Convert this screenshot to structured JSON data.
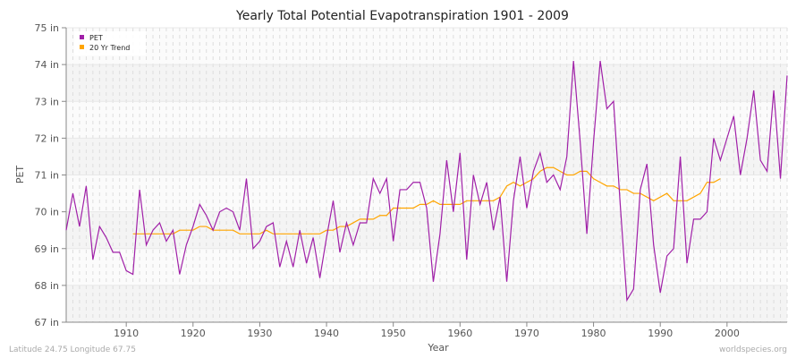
{
  "chart_data": {
    "type": "line",
    "title": "Yearly Total Potential Evapotranspiration 1901 - 2009",
    "xlabel": "Year",
    "ylabel": "PET",
    "xlim": [
      1901,
      2009
    ],
    "ylim": [
      67,
      75
    ],
    "xticks": [
      1910,
      1920,
      1930,
      1940,
      1950,
      1960,
      1970,
      1980,
      1990,
      2000
    ],
    "yticks": [
      {
        "v": 67,
        "label": "67 in"
      },
      {
        "v": 68,
        "label": "68 in"
      },
      {
        "v": 69,
        "label": "69 in"
      },
      {
        "v": 70,
        "label": "70 in"
      },
      {
        "v": 71,
        "label": "71 in"
      },
      {
        "v": 72,
        "label": "72 in"
      },
      {
        "v": 73,
        "label": "73 in"
      },
      {
        "v": 74,
        "label": "74 in"
      },
      {
        "v": 75,
        "label": "75 in"
      }
    ],
    "grid": true,
    "legend_position": "top-left",
    "series": [
      {
        "name": "PET",
        "color": "#a020a8",
        "start_year": 1901,
        "values": [
          69.5,
          70.5,
          69.6,
          70.7,
          68.7,
          69.6,
          69.3,
          68.9,
          68.9,
          68.4,
          68.3,
          70.6,
          69.1,
          69.5,
          69.7,
          69.2,
          69.5,
          68.3,
          69.1,
          69.6,
          70.2,
          69.9,
          69.5,
          70.0,
          70.1,
          70.0,
          69.5,
          70.9,
          69.0,
          69.2,
          69.6,
          69.7,
          68.5,
          69.2,
          68.5,
          69.5,
          68.6,
          69.3,
          68.2,
          69.3,
          70.3,
          68.9,
          69.7,
          69.1,
          69.7,
          69.7,
          70.9,
          70.5,
          70.9,
          69.2,
          70.6,
          70.6,
          70.8,
          70.8,
          70.1,
          68.1,
          69.4,
          71.4,
          70.0,
          71.6,
          68.7,
          71.0,
          70.2,
          70.8,
          69.5,
          70.4,
          68.1,
          70.3,
          71.5,
          70.1,
          71.1,
          71.6,
          70.8,
          71.0,
          70.6,
          71.5,
          74.1,
          71.9,
          69.4,
          71.9,
          74.1,
          72.8,
          73.0,
          70.2,
          67.6,
          67.9,
          70.6,
          71.3,
          69.1,
          67.8,
          68.8,
          69.0,
          71.5,
          68.6,
          69.8,
          69.8,
          70.0,
          72.0,
          71.4,
          72.0,
          72.6,
          71.0,
          72.0,
          73.3,
          71.4,
          71.1,
          73.3,
          70.9,
          73.7
        ]
      },
      {
        "name": "20 Yr Trend",
        "color": "#ffa500",
        "start_year": 1911,
        "values": [
          69.4,
          69.4,
          69.4,
          69.4,
          69.4,
          69.4,
          69.4,
          69.5,
          69.5,
          69.5,
          69.6,
          69.6,
          69.5,
          69.5,
          69.5,
          69.5,
          69.4,
          69.4,
          69.4,
          69.4,
          69.5,
          69.4,
          69.4,
          69.4,
          69.4,
          69.4,
          69.4,
          69.4,
          69.4,
          69.5,
          69.5,
          69.6,
          69.6,
          69.7,
          69.8,
          69.8,
          69.8,
          69.9,
          69.9,
          70.1,
          70.1,
          70.1,
          70.1,
          70.2,
          70.2,
          70.3,
          70.2,
          70.2,
          70.2,
          70.2,
          70.3,
          70.3,
          70.3,
          70.3,
          70.3,
          70.4,
          70.7,
          70.8,
          70.7,
          70.8,
          70.9,
          71.1,
          71.2,
          71.2,
          71.1,
          71.0,
          71.0,
          71.1,
          71.1,
          70.9,
          70.8,
          70.7,
          70.7,
          70.6,
          70.6,
          70.5,
          70.5,
          70.4,
          70.3,
          70.4,
          70.5,
          70.3,
          70.3,
          70.3,
          70.4,
          70.5,
          70.8,
          70.8,
          70.9
        ]
      }
    ]
  },
  "footer": {
    "location": "Latitude 24.75 Longitude 67.75",
    "source": "worldspecies.org"
  }
}
